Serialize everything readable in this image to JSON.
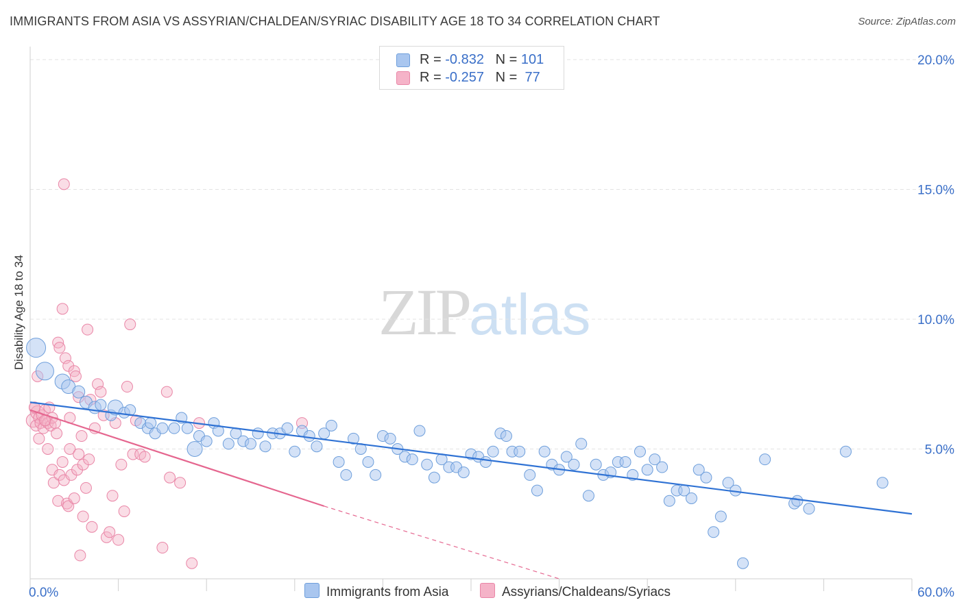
{
  "header": {
    "title": "IMMIGRANTS FROM ASIA VS ASSYRIAN/CHALDEAN/SYRIAC DISABILITY AGE 18 TO 34 CORRELATION CHART",
    "source": "Source: ZipAtlas.com"
  },
  "watermark": {
    "zip": "ZIP",
    "atlas": "atlas"
  },
  "legend": {
    "rows": [
      {
        "r_label": "R = ",
        "r_value": "-0.832",
        "n_label": "N = ",
        "n_value": "101",
        "color": "#a9c6ef"
      },
      {
        "r_label": "R = ",
        "r_value": "-0.257",
        "n_label": "N = ",
        "n_value": " 77",
        "color": "#f5b3c8"
      }
    ]
  },
  "colors": {
    "blue_fill": "#a9c6ef",
    "blue_stroke": "#6d9edb",
    "blue_line": "#2f72d4",
    "pink_fill": "#f5b3c8",
    "pink_stroke": "#e985a6",
    "pink_line": "#e5668f",
    "grid": "#e3e3e3",
    "tick_label": "#3a6fc8"
  },
  "chart_data": {
    "type": "scatter",
    "title": "IMMIGRANTS FROM ASIA VS ASSYRIAN/CHALDEAN/SYRIAC DISABILITY AGE 18 TO 34 CORRELATION CHART",
    "xlabel": "",
    "ylabel": "Disability Age 18 to 34",
    "xlim": [
      0,
      60
    ],
    "ylim": [
      0,
      20.5
    ],
    "x_tick_labels": [
      "0.0%",
      "60.0%"
    ],
    "y_ticks": [
      5,
      10,
      15,
      20
    ],
    "y_tick_labels": [
      "5.0%",
      "10.0%",
      "15.0%",
      "20.0%"
    ],
    "legend_position": "top-center",
    "series": [
      {
        "name": "Immigrants from Asia",
        "color": "#a9c6ef",
        "points": [
          [
            0.4,
            8.9,
            14
          ],
          [
            1.0,
            8.0,
            13
          ],
          [
            2.2,
            7.6,
            11
          ],
          [
            2.6,
            7.4,
            10
          ],
          [
            3.3,
            7.2,
            9
          ],
          [
            3.8,
            6.8,
            9
          ],
          [
            4.4,
            6.6,
            9
          ],
          [
            4.8,
            6.7,
            8
          ],
          [
            5.5,
            6.3,
            8
          ],
          [
            5.8,
            6.6,
            11
          ],
          [
            6.4,
            6.4,
            8
          ],
          [
            6.8,
            6.5,
            8
          ],
          [
            7.5,
            6.0,
            8
          ],
          [
            8.0,
            5.8,
            8
          ],
          [
            8.2,
            6.0,
            8
          ],
          [
            8.5,
            5.6,
            8
          ],
          [
            9.0,
            5.8,
            8
          ],
          [
            9.8,
            5.8,
            8
          ],
          [
            10.3,
            6.2,
            8
          ],
          [
            10.7,
            5.8,
            8
          ],
          [
            11.2,
            5.0,
            11
          ],
          [
            11.5,
            5.5,
            8
          ],
          [
            12.0,
            5.3,
            8
          ],
          [
            12.5,
            6.0,
            8
          ],
          [
            12.8,
            5.7,
            8
          ],
          [
            13.5,
            5.2,
            8
          ],
          [
            14.0,
            5.6,
            8
          ],
          [
            14.5,
            5.3,
            8
          ],
          [
            15.0,
            5.2,
            8
          ],
          [
            15.5,
            5.6,
            8
          ],
          [
            16.0,
            5.1,
            8
          ],
          [
            16.5,
            5.6,
            8
          ],
          [
            17.0,
            5.6,
            8
          ],
          [
            17.5,
            5.8,
            8
          ],
          [
            18.0,
            4.9,
            8
          ],
          [
            18.5,
            5.7,
            8
          ],
          [
            19.0,
            5.5,
            8
          ],
          [
            19.5,
            5.1,
            8
          ],
          [
            20.0,
            5.6,
            8
          ],
          [
            20.5,
            5.9,
            8
          ],
          [
            21.0,
            4.5,
            8
          ],
          [
            21.5,
            4.0,
            8
          ],
          [
            22.0,
            5.4,
            8
          ],
          [
            22.5,
            5.0,
            8
          ],
          [
            23.0,
            4.5,
            8
          ],
          [
            23.5,
            4.0,
            8
          ],
          [
            24.0,
            5.5,
            8
          ],
          [
            24.5,
            5.4,
            8
          ],
          [
            25.0,
            5.0,
            8
          ],
          [
            25.5,
            4.7,
            8
          ],
          [
            26.0,
            4.6,
            8
          ],
          [
            26.5,
            5.7,
            8
          ],
          [
            27.0,
            4.4,
            8
          ],
          [
            27.5,
            3.9,
            8
          ],
          [
            28.0,
            4.6,
            8
          ],
          [
            28.5,
            4.3,
            8
          ],
          [
            29.0,
            4.3,
            8
          ],
          [
            29.5,
            4.1,
            8
          ],
          [
            30.0,
            4.8,
            8
          ],
          [
            30.5,
            4.7,
            8
          ],
          [
            31.0,
            4.5,
            8
          ],
          [
            31.5,
            4.9,
            8
          ],
          [
            32.0,
            5.6,
            8
          ],
          [
            32.4,
            5.5,
            8
          ],
          [
            32.8,
            4.9,
            8
          ],
          [
            33.3,
            4.9,
            8
          ],
          [
            34.0,
            4.0,
            8
          ],
          [
            34.5,
            3.4,
            8
          ],
          [
            35.0,
            4.9,
            8
          ],
          [
            35.5,
            4.4,
            8
          ],
          [
            36.0,
            4.2,
            8
          ],
          [
            36.5,
            4.7,
            8
          ],
          [
            37.0,
            4.4,
            8
          ],
          [
            37.5,
            5.2,
            8
          ],
          [
            38.0,
            3.2,
            8
          ],
          [
            38.5,
            4.4,
            8
          ],
          [
            39.0,
            4.0,
            8
          ],
          [
            39.5,
            4.1,
            8
          ],
          [
            40.0,
            4.5,
            8
          ],
          [
            40.5,
            4.5,
            8
          ],
          [
            41.0,
            4.0,
            8
          ],
          [
            41.5,
            4.9,
            8
          ],
          [
            42.0,
            4.2,
            8
          ],
          [
            42.5,
            4.6,
            8
          ],
          [
            43.0,
            4.3,
            8
          ],
          [
            43.5,
            3.0,
            8
          ],
          [
            44.0,
            3.4,
            8
          ],
          [
            44.5,
            3.4,
            8
          ],
          [
            45.0,
            3.1,
            8
          ],
          [
            45.5,
            4.2,
            8
          ],
          [
            46.0,
            3.9,
            8
          ],
          [
            46.5,
            1.8,
            8
          ],
          [
            47.0,
            2.4,
            8
          ],
          [
            47.5,
            3.7,
            8
          ],
          [
            48.0,
            3.4,
            8
          ],
          [
            48.5,
            0.6,
            8
          ],
          [
            50.0,
            4.6,
            8
          ],
          [
            52.0,
            2.9,
            8
          ],
          [
            52.2,
            3.0,
            8
          ],
          [
            53.0,
            2.7,
            8
          ],
          [
            55.5,
            4.9,
            8
          ],
          [
            58.0,
            3.7,
            8
          ]
        ],
        "trend": {
          "x": [
            0,
            60
          ],
          "y": [
            6.8,
            2.5
          ]
        }
      },
      {
        "name": "Assyrians/Chaldeans/Syriacs",
        "color": "#f5b3c8",
        "points": [
          [
            0.2,
            6.1,
            10
          ],
          [
            0.3,
            6.6,
            8
          ],
          [
            0.4,
            5.9,
            8
          ],
          [
            0.5,
            6.4,
            10
          ],
          [
            0.6,
            6.2,
            8
          ],
          [
            0.7,
            6.0,
            8
          ],
          [
            0.8,
            6.3,
            8
          ],
          [
            0.9,
            5.8,
            8
          ],
          [
            1.0,
            6.5,
            8
          ],
          [
            1.1,
            6.1,
            8
          ],
          [
            1.2,
            6.0,
            8
          ],
          [
            1.3,
            6.6,
            8
          ],
          [
            1.4,
            5.9,
            8
          ],
          [
            1.5,
            6.2,
            8
          ],
          [
            1.7,
            6.0,
            8
          ],
          [
            1.8,
            5.6,
            8
          ],
          [
            0.5,
            7.8,
            8
          ],
          [
            0.6,
            5.4,
            8
          ],
          [
            1.2,
            5.0,
            8
          ],
          [
            1.5,
            4.2,
            8
          ],
          [
            1.6,
            3.7,
            8
          ],
          [
            1.9,
            3.0,
            8
          ],
          [
            2.0,
            4.0,
            8
          ],
          [
            2.2,
            4.5,
            8
          ],
          [
            2.3,
            3.8,
            8
          ],
          [
            2.5,
            2.9,
            8
          ],
          [
            2.6,
            2.8,
            8
          ],
          [
            2.7,
            6.2,
            8
          ],
          [
            2.7,
            5.0,
            8
          ],
          [
            2.8,
            4.0,
            8
          ],
          [
            3.0,
            3.1,
            8
          ],
          [
            3.2,
            4.2,
            8
          ],
          [
            3.3,
            4.8,
            8
          ],
          [
            3.5,
            5.5,
            8
          ],
          [
            3.6,
            4.4,
            8
          ],
          [
            3.8,
            3.5,
            8
          ],
          [
            4.0,
            4.6,
            8
          ],
          [
            4.2,
            2.0,
            8
          ],
          [
            4.4,
            5.8,
            8
          ],
          [
            4.6,
            7.5,
            8
          ],
          [
            4.8,
            7.2,
            8
          ],
          [
            5.0,
            6.3,
            8
          ],
          [
            5.2,
            1.6,
            8
          ],
          [
            5.4,
            1.8,
            8
          ],
          [
            5.6,
            3.2,
            8
          ],
          [
            5.8,
            6.0,
            8
          ],
          [
            6.0,
            1.5,
            8
          ],
          [
            6.2,
            4.4,
            8
          ],
          [
            6.4,
            2.6,
            8
          ],
          [
            6.6,
            7.4,
            8
          ],
          [
            6.8,
            9.8,
            8
          ],
          [
            7.0,
            4.8,
            8
          ],
          [
            7.2,
            6.1,
            8
          ],
          [
            7.5,
            4.8,
            8
          ],
          [
            7.8,
            4.7,
            8
          ],
          [
            2.2,
            10.4,
            8
          ],
          [
            2.3,
            15.2,
            8
          ],
          [
            1.9,
            9.1,
            8
          ],
          [
            2.0,
            8.9,
            8
          ],
          [
            2.4,
            8.5,
            8
          ],
          [
            2.6,
            8.2,
            8
          ],
          [
            3.0,
            8.0,
            8
          ],
          [
            3.1,
            7.8,
            8
          ],
          [
            3.3,
            7.0,
            8
          ],
          [
            3.9,
            9.6,
            8
          ],
          [
            4.1,
            6.9,
            8
          ],
          [
            9.0,
            1.2,
            8
          ],
          [
            9.3,
            7.2,
            8
          ],
          [
            9.5,
            3.9,
            8
          ],
          [
            10.2,
            3.7,
            8
          ],
          [
            11.0,
            0.6,
            8
          ],
          [
            11.5,
            6.0,
            8
          ],
          [
            18.5,
            6.0,
            8
          ],
          [
            3.4,
            0.9,
            8
          ],
          [
            3.6,
            2.4,
            8
          ],
          [
            0.3,
            6.6,
            8
          ],
          [
            1.0,
            6.1,
            8
          ]
        ],
        "trend_solid": {
          "x": [
            0,
            20
          ],
          "y": [
            6.5,
            2.8
          ]
        },
        "trend_dashed": {
          "x": [
            20,
            36
          ],
          "y": [
            2.8,
            0
          ]
        }
      }
    ]
  }
}
